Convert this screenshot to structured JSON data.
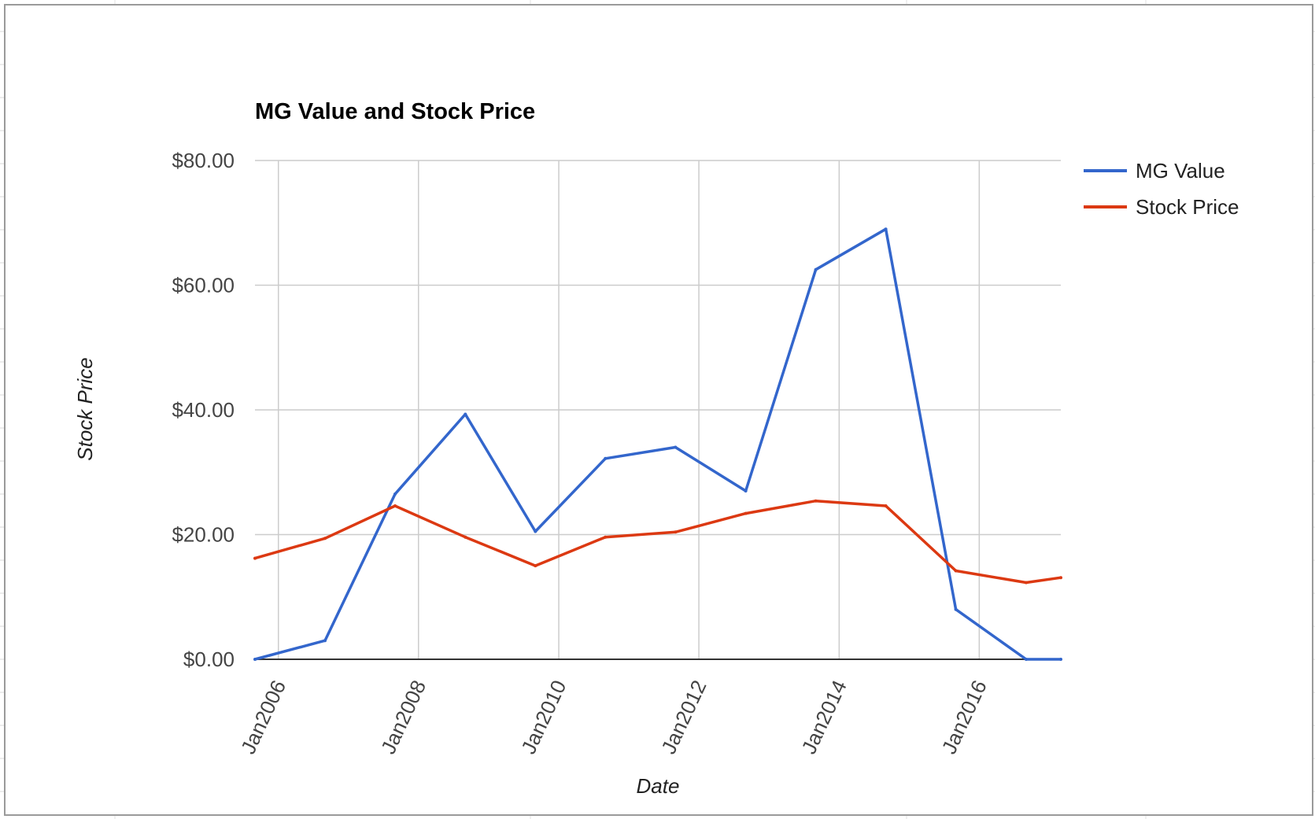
{
  "chart_data": {
    "type": "line",
    "title": "MG Value and Stock Price",
    "xlabel": "Date",
    "ylabel": "Stock Price",
    "x_type": "date",
    "x": [
      "2005-09-01",
      "2006-09-01",
      "2007-09-01",
      "2008-09-01",
      "2009-09-01",
      "2010-09-01",
      "2011-09-01",
      "2012-09-01",
      "2013-09-01",
      "2014-09-01",
      "2015-09-01",
      "2016-09-01",
      "2017-03-01"
    ],
    "xlim": [
      "2005-09-01",
      "2017-03-01"
    ],
    "x_ticks": [
      "2006-01-01",
      "2008-01-01",
      "2010-01-01",
      "2012-01-01",
      "2014-01-01",
      "2016-01-01"
    ],
    "x_tick_labels": [
      "Jan2006",
      "Jan2008",
      "Jan2010",
      "Jan2012",
      "Jan2014",
      "Jan2016"
    ],
    "ylim": [
      0,
      80
    ],
    "y_ticks": [
      0,
      20,
      40,
      60,
      80
    ],
    "y_tick_labels": [
      "$0.00",
      "$20.00",
      "$40.00",
      "$60.00",
      "$80.00"
    ],
    "grid": true,
    "legend_position": "right",
    "series": [
      {
        "name": "MG Value",
        "color": "#3366cc",
        "values": [
          0.0,
          3.0,
          26.5,
          39.3,
          20.5,
          32.2,
          34.0,
          27.0,
          62.5,
          69.0,
          8.0,
          0.0,
          0.0
        ]
      },
      {
        "name": "Stock Price",
        "color": "#dc3912",
        "values": [
          16.2,
          19.4,
          24.6,
          19.6,
          15.0,
          19.6,
          20.4,
          23.4,
          25.4,
          24.6,
          14.2,
          12.3,
          13.1
        ]
      }
    ]
  }
}
